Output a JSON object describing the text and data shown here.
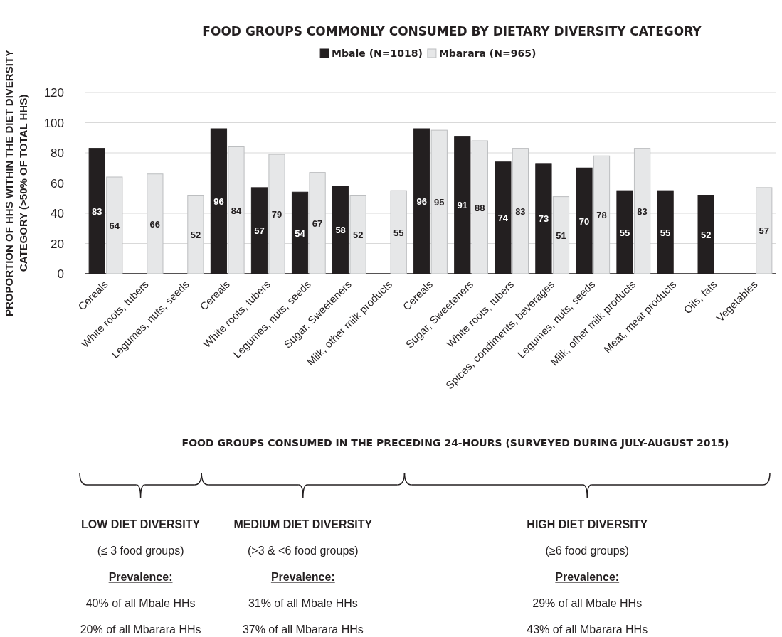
{
  "chart_data": {
    "type": "bar",
    "title": "FOOD GROUPS COMMONLY CONSUMED BY DIETARY DIVERSITY CATEGORY",
    "ylabel": "PROPORTION OF HHS WITHIN THE DIET DIVERSITY CATEGORY (>50% OF TOTAL HHS)",
    "categories": [
      "Cereals",
      "White roots, tubers",
      "Legumes, nuts, seeds",
      "Cereals",
      "White roots, tubers",
      "Legumes, nuts, seeds",
      "Sugar, Sweeteners",
      "Milk, other milk products",
      "Cereals",
      "Sugar, Sweeteners",
      "White roots, tubers",
      "Spices, condiments, beverages",
      "Legumes, nuts, seeds",
      "Milk, other milk products",
      "Meat, meat products",
      "Oils, fats",
      "Vegetables"
    ],
    "series": [
      {
        "name": "Mbale (N=1018)",
        "color": "#231f20",
        "values": [
          83,
          null,
          null,
          96,
          57,
          54,
          58,
          null,
          96,
          91,
          74,
          73,
          70,
          55,
          55,
          52,
          null
        ]
      },
      {
        "name": "Mbarara (N=965)",
        "color": "#e6e7e8",
        "values": [
          64,
          66,
          52,
          84,
          79,
          67,
          52,
          55,
          95,
          88,
          83,
          51,
          78,
          83,
          null,
          null,
          57
        ]
      }
    ],
    "ylim": [
      0,
      120
    ],
    "yticks": [
      0,
      20,
      40,
      60,
      80,
      100,
      120
    ],
    "grid": "y",
    "legend": "top",
    "data_labels": true,
    "annotations": [
      "FOOD GROUPS CONSUMED IN THE PRECEDING 24-HOURS (SURVEYED DURING JULY-AUGUST 2015)",
      "LOW DIET DIVERSITY",
      "(≤ 3 food groups)",
      "Prevalence:",
      "40% of all Mbale HHs",
      "20% of all Mbarara HHs",
      "MEDIUM DIET DIVERSITY",
      "(>3 & <6 food groups)",
      "Prevalence:",
      "31% of all Mbale HHs",
      "37% of all Mbarara HHs",
      "HIGH DIET DIVERSITY",
      "(≥6 food groups)",
      "Prevalence:",
      "29% of all Mbale HHs",
      "43% of all Mbarara HHs"
    ]
  }
}
